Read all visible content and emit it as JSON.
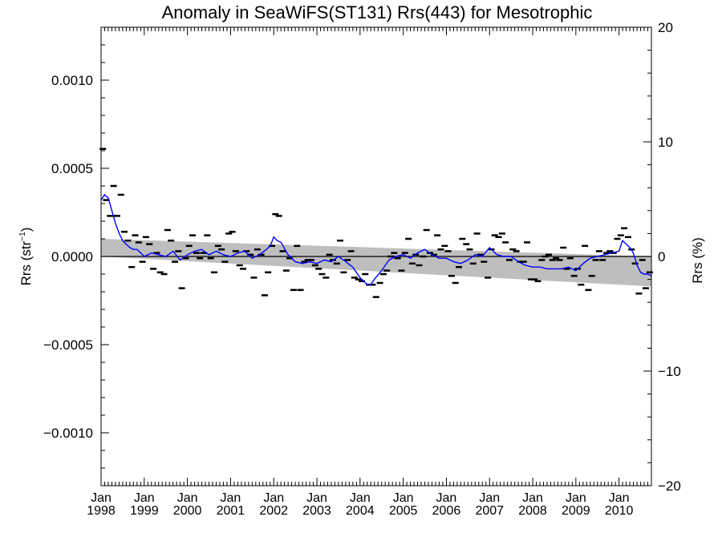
{
  "chart_data": {
    "type": "line",
    "title": "Anomaly in SeaWiFS(ST131) Rrs(443) for Mesotrophic",
    "ylabel": "Rrs (str",
    "ylabel_sup": "−1",
    "ylabel_close": ")",
    "y2label": "Rrs (%)",
    "xlim": [
      1998.0,
      2010.75
    ],
    "ylim": [
      -0.0013,
      0.0013
    ],
    "y2lim": [
      -20,
      20
    ],
    "grid": false,
    "x_ticks": [
      1998,
      1999,
      2000,
      2001,
      2002,
      2003,
      2004,
      2005,
      2006,
      2007,
      2008,
      2009,
      2010
    ],
    "x_tick_labels": [
      {
        "month": "Jan",
        "year": "1998"
      },
      {
        "month": "Jan",
        "year": "1999"
      },
      {
        "month": "Jan",
        "year": "2000"
      },
      {
        "month": "Jan",
        "year": "2001"
      },
      {
        "month": "Jan",
        "year": "2002"
      },
      {
        "month": "Jan",
        "year": "2003"
      },
      {
        "month": "Jan",
        "year": "2004"
      },
      {
        "month": "Jan",
        "year": "2005"
      },
      {
        "month": "Jan",
        "year": "2006"
      },
      {
        "month": "Jan",
        "year": "2007"
      },
      {
        "month": "Jan",
        "year": "2008"
      },
      {
        "month": "Jan",
        "year": "2009"
      },
      {
        "month": "Jan",
        "year": "2010"
      }
    ],
    "y_ticks": [
      {
        "value": 0.001,
        "label": "0.0010"
      },
      {
        "value": 0.0005,
        "label": "0.0005"
      },
      {
        "value": 0.0,
        "label": "0.0000"
      },
      {
        "value": -0.0005,
        "label": "−0.0005"
      },
      {
        "value": -0.001,
        "label": "−0.0010"
      }
    ],
    "y2_ticks": [
      {
        "value": 20,
        "label": "20"
      },
      {
        "value": 10,
        "label": "10"
      },
      {
        "value": 0,
        "label": "0"
      },
      {
        "value": -10,
        "label": "−10"
      },
      {
        "value": -20,
        "label": "−20"
      }
    ],
    "colors": {
      "running_mean": "#0000ff",
      "monthly_points": "#000000",
      "trend_band": "#bebebe",
      "zero_line": "#000000"
    },
    "trend_band": {
      "x": [
        1998.0,
        2010.75
      ],
      "upper": [
        0.0001,
        0.0
      ],
      "lower": [
        0.0,
        -0.00017
      ]
    },
    "series": [
      {
        "marker": "dash",
        "x": [
          1998.04,
          1998.12,
          1998.21,
          1998.29,
          1998.37,
          1998.46,
          1998.54,
          1998.62,
          1998.71,
          1998.79,
          1998.87,
          1998.96,
          1999.04,
          1999.12,
          1999.21,
          1999.29,
          1999.37,
          1999.46,
          1999.54,
          1999.62,
          1999.71,
          1999.79,
          1999.87,
          1999.96,
          2000.04,
          2000.12,
          2000.21,
          2000.29,
          2000.37,
          2000.46,
          2000.54,
          2000.62,
          2000.71,
          2000.79,
          2000.87,
          2000.96,
          2001.04,
          2001.12,
          2001.21,
          2001.29,
          2001.37,
          2001.46,
          2001.54,
          2001.62,
          2001.71,
          2001.79,
          2001.87,
          2001.96,
          2002.04,
          2002.12,
          2002.21,
          2002.29,
          2002.37,
          2002.46,
          2002.54,
          2002.62,
          2002.71,
          2002.79,
          2002.87,
          2002.96,
          2003.04,
          2003.12,
          2003.21,
          2003.29,
          2003.37,
          2003.46,
          2003.54,
          2003.62,
          2003.71,
          2003.79,
          2003.87,
          2003.96,
          2004.04,
          2004.12,
          2004.21,
          2004.29,
          2004.37,
          2004.46,
          2004.54,
          2004.62,
          2004.71,
          2004.79,
          2004.87,
          2004.96,
          2005.04,
          2005.12,
          2005.21,
          2005.29,
          2005.37,
          2005.46,
          2005.54,
          2005.62,
          2005.71,
          2005.79,
          2005.87,
          2005.96,
          2006.04,
          2006.12,
          2006.21,
          2006.29,
          2006.37,
          2006.46,
          2006.54,
          2006.62,
          2006.71,
          2006.79,
          2006.87,
          2006.96,
          2007.04,
          2007.12,
          2007.21,
          2007.29,
          2007.37,
          2007.46,
          2007.54,
          2007.62,
          2007.71,
          2007.79,
          2007.87,
          2007.96,
          2008.04,
          2008.12,
          2008.21,
          2008.29,
          2008.37,
          2008.46,
          2008.54,
          2008.62,
          2008.71,
          2008.79,
          2008.87,
          2008.96,
          2009.04,
          2009.12,
          2009.21,
          2009.29,
          2009.37,
          2009.46,
          2009.54,
          2009.62,
          2009.71,
          2009.79,
          2009.87,
          2009.96,
          2010.04,
          2010.12,
          2010.21,
          2010.29,
          2010.37,
          2010.46,
          2010.54,
          2010.62,
          2010.71
        ],
        "y": [
          0.00061,
          0.00032,
          0.00023,
          0.0004,
          0.00023,
          0.00035,
          0.00014,
          9e-05,
          -6e-05,
          0.00012,
          8e-05,
          -3e-05,
          0.00011,
          7e-05,
          -7e-05,
          2e-05,
          -9e-05,
          -0.0001,
          0.00015,
          9e-05,
          -3e-05,
          3e-05,
          -0.00018,
          -1e-05,
          6e-05,
          0.00012,
          2e-05,
          -1e-05,
          2e-05,
          0.00012,
          -1e-05,
          -9e-05,
          6e-05,
          4e-05,
          -3e-05,
          0.00013,
          0.00014,
          3e-05,
          -5e-05,
          -7e-05,
          3e-05,
          1e-05,
          -0.00012,
          4e-05,
          1e-05,
          -0.00022,
          -9e-05,
          6e-05,
          0.00024,
          0.00023,
          3e-05,
          -8e-05,
          -1e-05,
          -0.00019,
          6e-05,
          -0.00019,
          -3e-05,
          -2e-05,
          -2e-05,
          -5e-05,
          -7e-05,
          -0.0001,
          -0.00012,
          1e-05,
          -2e-05,
          -4e-05,
          9e-05,
          -9e-05,
          -2e-05,
          3e-05,
          -0.00012,
          -0.00013,
          -0.00014,
          -0.0001,
          -0.00016,
          -0.00016,
          -0.00023,
          -0.00015,
          -0.0001,
          -8e-05,
          0.0,
          2e-05,
          -1e-05,
          -8e-05,
          2e-05,
          0.0001,
          -4e-05,
          1e-05,
          -5e-05,
          0.0,
          0.00015,
          2e-05,
          1e-05,
          0.00012,
          4e-05,
          6e-05,
          3e-05,
          -0.00011,
          -0.00015,
          -6e-05,
          0.0001,
          7e-05,
          4e-05,
          -4e-05,
          0.00013,
          1e-05,
          -3e-05,
          -0.00012,
          4e-05,
          0.00012,
          0.00011,
          0.00013,
          8e-05,
          -2e-05,
          4e-05,
          3e-05,
          -3e-05,
          -3e-05,
          8e-05,
          -0.00013,
          -0.00013,
          -0.00014,
          -2e-05,
          0.0,
          1e-05,
          -2e-05,
          -1e-05,
          -2e-05,
          5e-05,
          -7e-05,
          -1e-05,
          -0.00011,
          -7e-05,
          -0.00016,
          6e-05,
          -0.00019,
          -0.00011,
          -2e-05,
          3e-05,
          -2e-05,
          2e-05,
          3e-05,
          2e-05,
          0.0001,
          0.00012,
          0.00016,
          0.00011,
          4e-05,
          -4e-05,
          -0.00021,
          -2e-05,
          -0.00018,
          -9e-05
        ]
      },
      {
        "marker": "line",
        "x": [
          1998.0,
          1998.08,
          1998.17,
          1998.25,
          1998.33,
          1998.42,
          1998.5,
          1998.58,
          1998.67,
          1998.75,
          1998.83,
          1998.92,
          1999.0,
          1999.17,
          1999.33,
          1999.5,
          1999.67,
          1999.83,
          2000.0,
          2000.17,
          2000.33,
          2000.5,
          2000.67,
          2000.83,
          2001.0,
          2001.17,
          2001.33,
          2001.5,
          2001.67,
          2001.83,
          2001.92,
          2002.0,
          2002.08,
          2002.17,
          2002.33,
          2002.5,
          2002.67,
          2002.83,
          2003.0,
          2003.17,
          2003.33,
          2003.5,
          2003.67,
          2003.83,
          2004.0,
          2004.08,
          2004.17,
          2004.25,
          2004.33,
          2004.5,
          2004.67,
          2004.83,
          2005.0,
          2005.17,
          2005.33,
          2005.5,
          2005.67,
          2005.83,
          2006.0,
          2006.17,
          2006.33,
          2006.5,
          2006.67,
          2006.83,
          2007.0,
          2007.17,
          2007.33,
          2007.5,
          2007.67,
          2007.83,
          2008.0,
          2008.17,
          2008.33,
          2008.5,
          2008.67,
          2008.83,
          2009.0,
          2009.17,
          2009.33,
          2009.5,
          2009.67,
          2009.83,
          2010.0,
          2010.08,
          2010.17,
          2010.25,
          2010.33,
          2010.42,
          2010.5,
          2010.58,
          2010.67,
          2010.75
        ],
        "y": [
          0.00032,
          0.00035,
          0.00033,
          0.00026,
          0.00019,
          0.00013,
          9e-05,
          7e-05,
          5e-05,
          4e-05,
          4e-05,
          2e-05,
          0.0,
          2e-05,
          1e-05,
          0.0,
          3e-05,
          -2e-05,
          1e-05,
          3e-05,
          4e-05,
          1e-05,
          3e-05,
          1e-05,
          0.0,
          2e-05,
          3e-05,
          -1e-05,
          1e-05,
          4e-05,
          6e-05,
          0.00011,
          9e-05,
          8e-05,
          1e-05,
          -3e-05,
          -4e-05,
          -3e-05,
          -4e-05,
          -2e-05,
          -3e-05,
          0.0,
          -3e-05,
          -6e-05,
          -0.00012,
          -0.00014,
          -0.00016,
          -0.00016,
          -0.00013,
          -8e-05,
          -2e-05,
          0.0,
          1e-05,
          -1e-05,
          2e-05,
          4e-05,
          1e-05,
          -1e-05,
          -1e-05,
          -3e-05,
          -4e-05,
          -2e-05,
          1e-05,
          0.0,
          5e-05,
          1e-05,
          0.0,
          0.0,
          -3e-05,
          -5e-05,
          -6e-05,
          -6e-05,
          -7e-05,
          -7e-05,
          -7e-05,
          -6e-05,
          -8e-05,
          -4e-05,
          -1e-05,
          0.0,
          1e-05,
          2e-05,
          3e-05,
          9e-05,
          7e-05,
          5e-05,
          2e-05,
          -5e-05,
          -9e-05,
          -0.0001,
          -0.0001,
          -0.00011
        ]
      }
    ]
  }
}
